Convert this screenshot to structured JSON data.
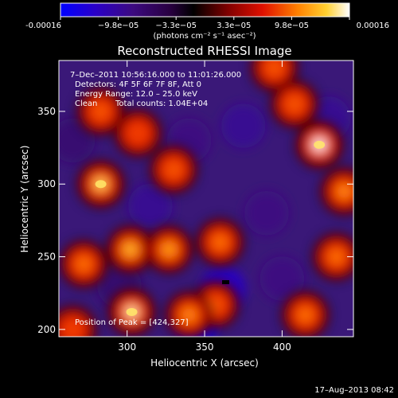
{
  "colorbar": {
    "min": -0.00016,
    "max": 0.00016,
    "tick_labels": [
      "-0.00016",
      "−9.8e−05",
      "−3.3e−05",
      "3.3e−05",
      "9.8e−05",
      "0.00016"
    ],
    "unit_label": "(photons cm⁻² s⁻¹ asec⁻²)",
    "colormap": [
      "#0000ff",
      "#2a00c0",
      "#3c0a80",
      "#2a0050",
      "#000000",
      "#500000",
      "#b00000",
      "#ff3000",
      "#ff9000",
      "#ffe040",
      "#ffffff"
    ]
  },
  "chart_data": {
    "type": "heatmap",
    "title": "Reconstructed RHESSI Image",
    "xlabel": "Heliocentric X (arcsec)",
    "ylabel": "Heliocentric Y (arcsec)",
    "xlim": [
      256,
      446
    ],
    "ylim": [
      195,
      385
    ],
    "x_ticks": [
      300,
      350,
      400
    ],
    "y_ticks": [
      200,
      250,
      300,
      350
    ],
    "annotations": {
      "time_range": "7–Dec–2011 10:56:16.000 to 11:01:26.000",
      "detectors": "Detectors: 4F 5F 6F 7F 8F, Att 0",
      "energy": "Energy Range: 12.0 – 25.0 keV",
      "method": "Clean",
      "counts": "Total counts: 1.04E+04",
      "peak": "Position of Peak = [424,327]"
    },
    "bright_sources": [
      {
        "x": 272,
        "y": 245,
        "value": 0.0001
      },
      {
        "x": 283,
        "y": 300,
        "value": 0.00014
      },
      {
        "x": 302,
        "y": 255,
        "value": 0.00013
      },
      {
        "x": 327,
        "y": 255,
        "value": 0.00012
      },
      {
        "x": 360,
        "y": 260,
        "value": 0.0001
      },
      {
        "x": 357,
        "y": 217,
        "value": 9e-05
      },
      {
        "x": 303,
        "y": 212,
        "value": 0.00015
      },
      {
        "x": 340,
        "y": 210,
        "value": 0.00011
      },
      {
        "x": 424,
        "y": 327,
        "value": 0.00016
      },
      {
        "x": 440,
        "y": 295,
        "value": 0.00011
      },
      {
        "x": 435,
        "y": 250,
        "value": 0.0001
      },
      {
        "x": 415,
        "y": 210,
        "value": 0.0001
      },
      {
        "x": 283,
        "y": 350,
        "value": 9e-05
      },
      {
        "x": 307,
        "y": 335,
        "value": 8e-05
      },
      {
        "x": 330,
        "y": 310,
        "value": 9e-05
      },
      {
        "x": 265,
        "y": 200,
        "value": 8e-05
      },
      {
        "x": 395,
        "y": 380,
        "value": 9e-05
      },
      {
        "x": 408,
        "y": 355,
        "value": 9e-05
      }
    ],
    "dim_regions": [
      {
        "x": 345,
        "y": 205,
        "value": -0.00014
      },
      {
        "x": 362,
        "y": 228,
        "value": -0.00012
      },
      {
        "x": 315,
        "y": 285,
        "value": -9e-05
      },
      {
        "x": 390,
        "y": 280,
        "value": -8e-05
      },
      {
        "x": 375,
        "y": 340,
        "value": -9e-05
      },
      {
        "x": 340,
        "y": 330,
        "value": -8e-05
      },
      {
        "x": 295,
        "y": 230,
        "value": -7e-05
      },
      {
        "x": 430,
        "y": 345,
        "value": -9e-05
      },
      {
        "x": 400,
        "y": 235,
        "value": -8e-05
      },
      {
        "x": 265,
        "y": 330,
        "value": -7e-05
      }
    ],
    "footer_date": "17–Aug–2013 08:42"
  }
}
